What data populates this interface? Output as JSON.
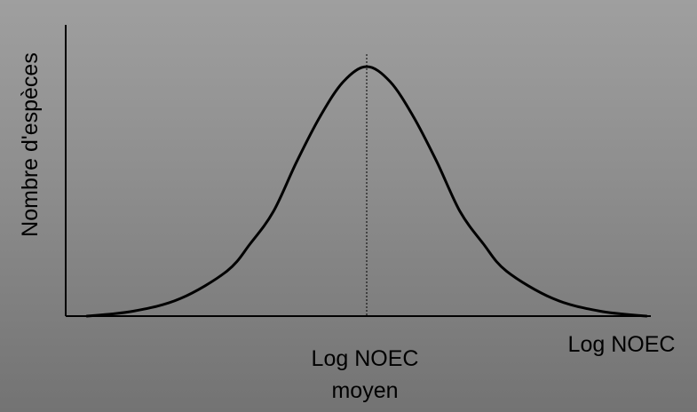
{
  "chart_data": {
    "type": "line",
    "title": "",
    "ylabel": "Nombre d'espèces",
    "xlabel": "Log NOEC",
    "mean_label_line1": "Log NOEC",
    "mean_label_line2": "moyen",
    "mean_marker": "dotted vertical line at the curve peak",
    "curve": "normal distribution (bell curve)",
    "x": [
      -3.0,
      -2.5,
      -2.0,
      -1.5,
      -1.25,
      -1.0,
      -0.75,
      -0.5,
      -0.25,
      0.0,
      0.25,
      0.5,
      0.75,
      1.0,
      1.25,
      1.5,
      2.0,
      2.5,
      3.0
    ],
    "values": [
      0.0,
      0.02,
      0.07,
      0.18,
      0.29,
      0.42,
      0.62,
      0.8,
      0.94,
      1.0,
      0.94,
      0.8,
      0.62,
      0.42,
      0.29,
      0.18,
      0.07,
      0.02,
      0.0
    ],
    "xlim": [
      -3.0,
      3.0
    ],
    "ylim": [
      0,
      1.25
    ],
    "grid": false,
    "legend": "none",
    "line_color": "#000000",
    "background_top": "#9f9f9f",
    "background_bottom": "#737373"
  }
}
